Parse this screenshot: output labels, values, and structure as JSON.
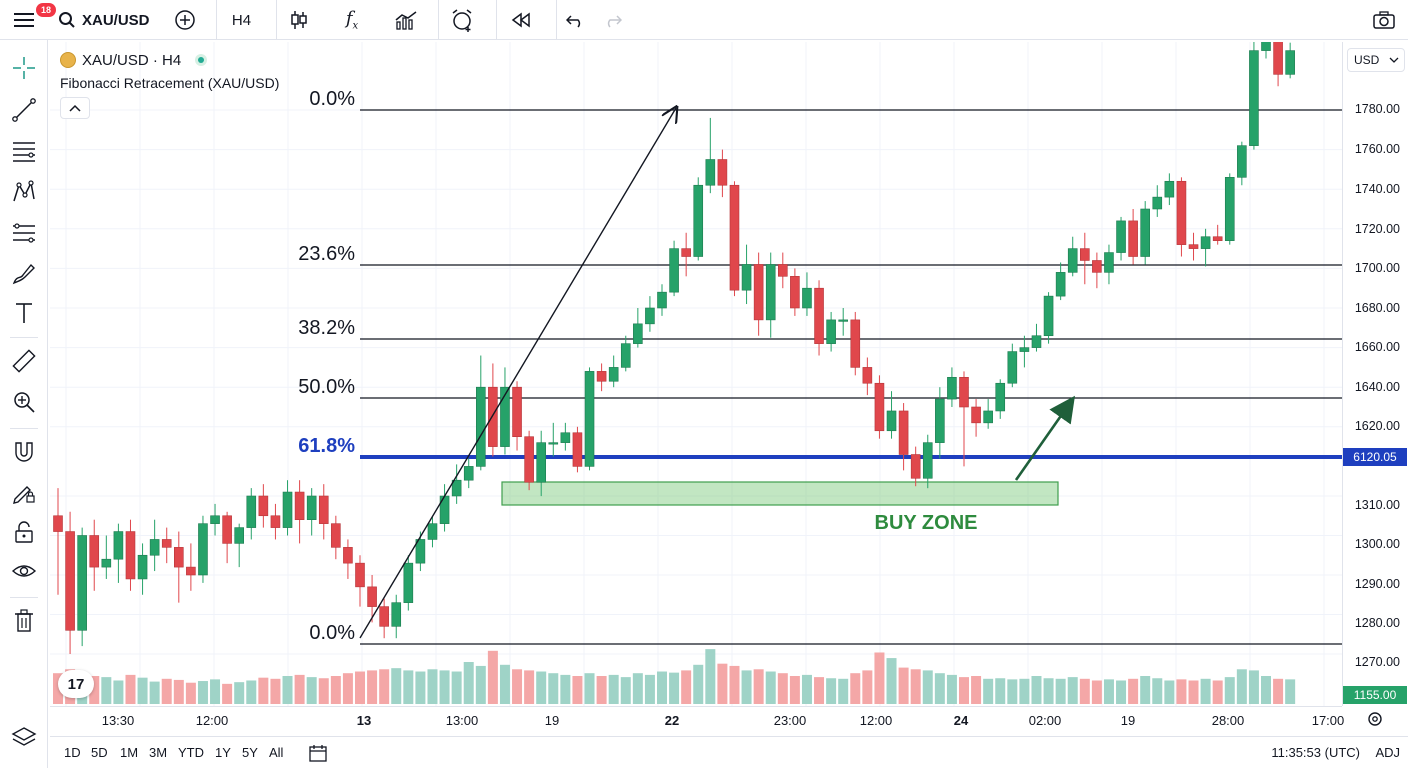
{
  "topbar": {
    "menu_badge": "18",
    "symbol": "XAU/USD",
    "interval": "H4"
  },
  "legend": {
    "title": "XAU/USD · H4",
    "indicator": "Fibonacci Retracement (XAU/USD)"
  },
  "fib_levels": [
    {
      "label": "0.0%",
      "price": 1777,
      "color": "#131722",
      "highlight": false
    },
    {
      "label": "23.6%",
      "price": 1698,
      "color": "#131722",
      "highlight": false
    },
    {
      "label": "38.2%",
      "price": 1660,
      "color": "#131722",
      "highlight": false
    },
    {
      "label": "50.0%",
      "price": 1630,
      "color": "#131722",
      "highlight": false
    },
    {
      "label": "61.8%",
      "price": 1600,
      "color": "#1e3fbf",
      "highlight": true
    },
    {
      "label": "0.0%",
      "price": 1273,
      "color": "#131722",
      "highlight": false
    }
  ],
  "buy_zone": {
    "label": "BUY ZONE",
    "color": "#2e8b3e"
  },
  "price_scale": {
    "currency": "USD",
    "ticks": [
      "1780.00",
      "1760.00",
      "1740.00",
      "1720.00",
      "1700.00",
      "1680.00",
      "1660.00",
      "1640.00",
      "1620.00",
      "1310.00",
      "1300.00",
      "1290.00",
      "1280.00",
      "1270.00"
    ],
    "current_label": "6120.05",
    "volume_label": "1155.00"
  },
  "time_axis": [
    {
      "label": "13:30",
      "bold": false
    },
    {
      "label": "12:00",
      "bold": false
    },
    {
      "label": "13",
      "bold": true
    },
    {
      "label": "13:00",
      "bold": false
    },
    {
      "label": "19",
      "bold": false
    },
    {
      "label": "22",
      "bold": true
    },
    {
      "label": "23:00",
      "bold": false
    },
    {
      "label": "12:00",
      "bold": false
    },
    {
      "label": "24",
      "bold": true
    },
    {
      "label": "02:00",
      "bold": false
    },
    {
      "label": "19",
      "bold": false
    },
    {
      "label": "28:00",
      "bold": false
    },
    {
      "label": "17:00",
      "bold": false
    }
  ],
  "bottombar": {
    "ranges": [
      "1D",
      "5D",
      "1M",
      "3M",
      "YTD",
      "1Y",
      "5Y",
      "All"
    ],
    "clock": "11:35:53 (UTC)",
    "adj": "ADJ"
  },
  "colors": {
    "up": "#26a269",
    "down": "#e0474c",
    "up_vol": "#9fd3c7",
    "down_vol": "#f4a7a7",
    "fib_blue": "#1e3fbf"
  },
  "chart_data": {
    "type": "candlestick",
    "note_levels": "Fibonacci retracement with buy zone below 61.8% level",
    "candles": [
      [
        1305,
        1301,
        1312,
        1285
      ],
      [
        1301,
        1276,
        1306,
        1270
      ],
      [
        1276,
        1300,
        1302,
        1272
      ],
      [
        1300,
        1292,
        1304,
        1286
      ],
      [
        1292,
        1294,
        1300,
        1289
      ],
      [
        1294,
        1301,
        1303,
        1288
      ],
      [
        1301,
        1289,
        1304,
        1286
      ],
      [
        1289,
        1295,
        1298,
        1285
      ],
      [
        1295,
        1299,
        1304,
        1291
      ],
      [
        1299,
        1297,
        1302,
        1293
      ],
      [
        1297,
        1292,
        1301,
        1283
      ],
      [
        1292,
        1290,
        1298,
        1286
      ],
      [
        1290,
        1303,
        1305,
        1288
      ],
      [
        1303,
        1305,
        1308,
        1300
      ],
      [
        1305,
        1298,
        1306,
        1293
      ],
      [
        1298,
        1302,
        1303,
        1292
      ],
      [
        1302,
        1310,
        1312,
        1299
      ],
      [
        1310,
        1305,
        1313,
        1302
      ],
      [
        1305,
        1302,
        1308,
        1299
      ],
      [
        1302,
        1311,
        1314,
        1300
      ],
      [
        1311,
        1304,
        1314,
        1298
      ],
      [
        1304,
        1310,
        1312,
        1300
      ],
      [
        1310,
        1303,
        1313,
        1299
      ],
      [
        1303,
        1297,
        1305,
        1294
      ],
      [
        1297,
        1293,
        1299,
        1289
      ],
      [
        1293,
        1287,
        1295,
        1282
      ],
      [
        1287,
        1282,
        1290,
        1278
      ],
      [
        1282,
        1277,
        1284,
        1274
      ],
      [
        1277,
        1283,
        1285,
        1274
      ],
      [
        1283,
        1293,
        1295,
        1281
      ],
      [
        1293,
        1299,
        1301,
        1291
      ],
      [
        1299,
        1303,
        1305,
        1297
      ],
      [
        1303,
        1310,
        1313,
        1301
      ],
      [
        1310,
        1314,
        1318,
        1308
      ],
      [
        1314,
        1600,
        1604,
        1312
      ],
      [
        1600,
        1640,
        1656,
        1598
      ],
      [
        1640,
        1610,
        1652,
        1605
      ],
      [
        1610,
        1640,
        1650,
        1606
      ],
      [
        1640,
        1615,
        1643,
        1608
      ],
      [
        1615,
        1592,
        1618,
        1588
      ],
      [
        1592,
        1612,
        1618,
        1585
      ],
      [
        1612,
        1612,
        1622,
        1605
      ],
      [
        1612,
        1617,
        1622,
        1608
      ],
      [
        1617,
        1600,
        1620,
        1597
      ],
      [
        1600,
        1648,
        1650,
        1598
      ],
      [
        1648,
        1643,
        1652,
        1638
      ],
      [
        1643,
        1650,
        1656,
        1640
      ],
      [
        1650,
        1662,
        1666,
        1648
      ],
      [
        1662,
        1672,
        1680,
        1660
      ],
      [
        1672,
        1680,
        1686,
        1668
      ],
      [
        1680,
        1688,
        1692,
        1676
      ],
      [
        1688,
        1710,
        1714,
        1686
      ],
      [
        1710,
        1706,
        1718,
        1696
      ],
      [
        1706,
        1742,
        1746,
        1704
      ],
      [
        1742,
        1755,
        1776,
        1738
      ],
      [
        1755,
        1742,
        1760,
        1736
      ],
      [
        1742,
        1689,
        1744,
        1686
      ],
      [
        1689,
        1702,
        1712,
        1682
      ],
      [
        1702,
        1674,
        1708,
        1666
      ],
      [
        1674,
        1702,
        1708,
        1665
      ],
      [
        1702,
        1696,
        1708,
        1690
      ],
      [
        1696,
        1680,
        1700,
        1676
      ],
      [
        1680,
        1690,
        1698,
        1676
      ],
      [
        1690,
        1662,
        1694,
        1656
      ],
      [
        1662,
        1674,
        1678,
        1658
      ],
      [
        1674,
        1674,
        1680,
        1666
      ],
      [
        1674,
        1650,
        1678,
        1646
      ],
      [
        1650,
        1642,
        1655,
        1636
      ],
      [
        1642,
        1618,
        1646,
        1614
      ],
      [
        1618,
        1628,
        1638,
        1614
      ],
      [
        1628,
        1606,
        1632,
        1598
      ],
      [
        1606,
        1594,
        1610,
        1590
      ],
      [
        1594,
        1612,
        1616,
        1589
      ],
      [
        1612,
        1634,
        1640,
        1604
      ],
      [
        1634,
        1645,
        1650,
        1630
      ],
      [
        1645,
        1630,
        1648,
        1600
      ],
      [
        1630,
        1622,
        1634,
        1615
      ],
      [
        1622,
        1628,
        1634,
        1619
      ],
      [
        1628,
        1642,
        1644,
        1624
      ],
      [
        1642,
        1658,
        1662,
        1640
      ],
      [
        1658,
        1660,
        1666,
        1650
      ],
      [
        1660,
        1666,
        1672,
        1658
      ],
      [
        1666,
        1686,
        1688,
        1662
      ],
      [
        1686,
        1698,
        1703,
        1684
      ],
      [
        1698,
        1710,
        1716,
        1696
      ],
      [
        1710,
        1704,
        1718,
        1692
      ],
      [
        1704,
        1698,
        1708,
        1690
      ],
      [
        1698,
        1708,
        1712,
        1692
      ],
      [
        1708,
        1724,
        1726,
        1704
      ],
      [
        1724,
        1706,
        1730,
        1702
      ],
      [
        1706,
        1730,
        1734,
        1702
      ],
      [
        1730,
        1736,
        1742,
        1726
      ],
      [
        1736,
        1744,
        1748,
        1732
      ],
      [
        1744,
        1712,
        1746,
        1706
      ],
      [
        1712,
        1710,
        1718,
        1704
      ],
      [
        1710,
        1716,
        1720,
        1701
      ],
      [
        1716,
        1714,
        1722,
        1712
      ],
      [
        1714,
        1746,
        1748,
        1712
      ],
      [
        1746,
        1762,
        1764,
        1742
      ],
      [
        1762,
        1810,
        1815,
        1760
      ],
      [
        1810,
        1818,
        1822,
        1806
      ],
      [
        1818,
        1798,
        1822,
        1792
      ],
      [
        1798,
        1810,
        1814,
        1796
      ]
    ],
    "volumes": [
      0.55,
      0.62,
      0.45,
      0.5,
      0.48,
      0.42,
      0.52,
      0.47,
      0.4,
      0.45,
      0.43,
      0.38,
      0.41,
      0.44,
      0.36,
      0.39,
      0.42,
      0.47,
      0.45,
      0.5,
      0.52,
      0.48,
      0.46,
      0.5,
      0.55,
      0.58,
      0.6,
      0.62,
      0.64,
      0.6,
      0.58,
      0.62,
      0.6,
      0.58,
      0.75,
      0.68,
      0.95,
      0.7,
      0.62,
      0.6,
      0.58,
      0.55,
      0.52,
      0.5,
      0.55,
      0.5,
      0.52,
      0.48,
      0.55,
      0.52,
      0.58,
      0.56,
      0.6,
      0.7,
      0.98,
      0.72,
      0.68,
      0.6,
      0.62,
      0.58,
      0.55,
      0.5,
      0.52,
      0.48,
      0.46,
      0.45,
      0.55,
      0.6,
      0.92,
      0.82,
      0.65,
      0.62,
      0.6,
      0.55,
      0.52,
      0.48,
      0.5,
      0.45,
      0.46,
      0.44,
      0.45,
      0.5,
      0.46,
      0.45,
      0.48,
      0.45,
      0.42,
      0.44,
      0.42,
      0.45,
      0.5,
      0.46,
      0.42,
      0.44,
      0.42,
      0.45,
      0.42,
      0.48,
      0.62,
      0.6,
      0.5,
      0.45,
      0.44
    ]
  }
}
